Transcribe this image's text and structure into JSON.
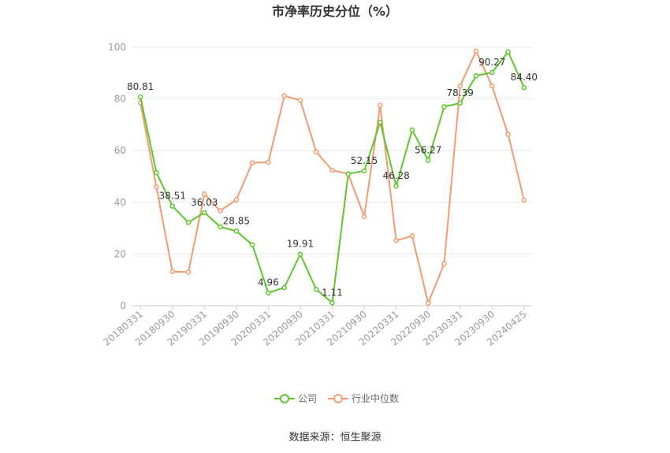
{
  "chart_data": {
    "type": "line",
    "title": "市净率历史分位（%）",
    "source": "数据来源：恒生聚源",
    "ylim": [
      0,
      100
    ],
    "yticks": [
      0,
      20,
      40,
      60,
      80,
      100
    ],
    "grid": true,
    "legend_position": "bottom",
    "xtick_labels": [
      "20180331",
      "20180930",
      "20190331",
      "20190930",
      "20200331",
      "20200930",
      "20210331",
      "20210930",
      "20220331",
      "20220930",
      "20230331",
      "20230930",
      "20240425"
    ],
    "x": [
      "20180331",
      "20180630",
      "20180930",
      "20181231",
      "20190331",
      "20190630",
      "20190930",
      "20191231",
      "20200331",
      "20200630",
      "20200930",
      "20201231",
      "20210331",
      "20210630",
      "20210930",
      "20211231",
      "20220331",
      "20220630",
      "20220930",
      "20221231",
      "20230331",
      "20230630",
      "20230930",
      "20231231",
      "20240425"
    ],
    "series": [
      {
        "name": "公司",
        "color": "#5dc72e",
        "values": [
          80.81,
          51.5,
          38.51,
          32.2,
          36.03,
          30.5,
          28.85,
          23.6,
          4.96,
          7.0,
          19.91,
          6.3,
          1.11,
          51.0,
          52.15,
          71.0,
          46.28,
          68.0,
          56.27,
          77.0,
          78.39,
          89.0,
          90.27,
          98.2,
          84.4
        ],
        "labels": {
          "0": "80.81",
          "2": "38.51",
          "4": "36.03",
          "6": "28.85",
          "8": "4.96",
          "10": "19.91",
          "12": "1.11",
          "14": "52.15",
          "16": "46.28",
          "18": "56.27",
          "20": "78.39",
          "22": "90.27",
          "24": "84.40"
        }
      },
      {
        "name": "行业中位数",
        "color": "#f59a6e",
        "values": [
          78.5,
          46.0,
          13.2,
          13.0,
          43.2,
          36.7,
          41.0,
          55.3,
          55.5,
          81.2,
          79.5,
          59.5,
          52.4,
          51.0,
          34.5,
          77.5,
          25.2,
          27.0,
          1.0,
          16.2,
          85.0,
          98.5,
          85.0,
          66.3,
          40.8
        ]
      }
    ]
  }
}
